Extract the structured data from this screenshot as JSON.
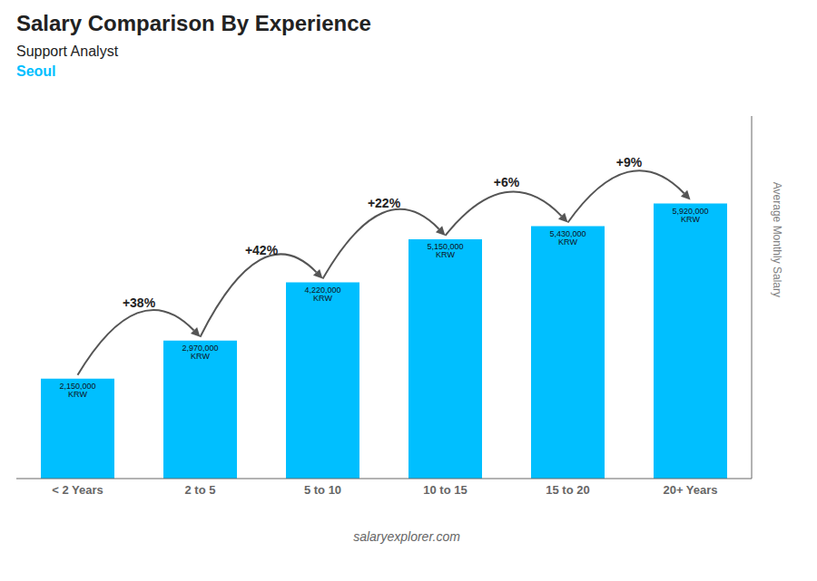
{
  "chart_data": {
    "type": "bar",
    "title": "Salary Comparison By Experience",
    "subtitle": "Support Analyst",
    "annotations": [
      "Seoul",
      "salaryexplorer.com"
    ],
    "ylabel": "Average Monthly Salary",
    "categories": [
      "< 2 Years",
      "2 to 5",
      "5 to 10",
      "10 to 15",
      "15 to 20",
      "20+ Years"
    ],
    "values": [
      2150000,
      2970000,
      4220000,
      5150000,
      5430000,
      5920000
    ],
    "value_labels": [
      "2,150,000 KRW",
      "2,970,000 KRW",
      "4,220,000 KRW",
      "5,150,000 KRW",
      "5,430,000 KRW",
      "5,920,000 KRW"
    ],
    "data_labels": true,
    "change_labels": [
      null,
      "+38%",
      "+42%",
      "+22%",
      "+6%",
      "+9%"
    ],
    "color": "#00BFFF",
    "ylim": [
      0,
      7800000
    ],
    "yticks": [],
    "tick_labels": "x",
    "grid": false
  }
}
